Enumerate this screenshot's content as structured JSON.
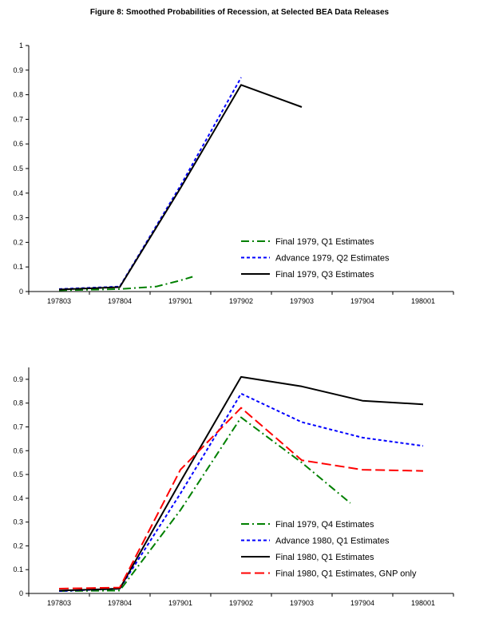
{
  "figure_title": "Figure 8: Smoothed Probabilities of Recession, at Selected BEA Data Releases",
  "colors": {
    "axis": "#000000",
    "green_series": "#008000",
    "blue_series": "#0000ff",
    "black_series": "#000000",
    "red_series": "#ff0000",
    "background": "#ffffff"
  },
  "chart_data": [
    {
      "type": "line",
      "title": "",
      "xlabel": "",
      "ylabel": "",
      "grid": false,
      "legend_position": "inside lower right",
      "x_tick_labels": [
        "197803",
        "197804",
        "197901",
        "197902",
        "197903",
        "197904",
        "198001"
      ],
      "y_tick_values": [
        0,
        0.1,
        0.2,
        0.3,
        0.4,
        0.5,
        0.6,
        0.7,
        0.8,
        0.9,
        1
      ],
      "y_tick_labels": [
        "0",
        "0.1",
        "0.2",
        "0.3",
        "0.4",
        "0.5",
        "0.6",
        "0.7",
        "0.8",
        "0.9",
        "1"
      ],
      "ylim": [
        0,
        1
      ],
      "series": [
        {
          "name": "Final 1979, Q1 Estimates",
          "color": "#008000",
          "dash": "dash-dot",
          "points": [
            [
              0,
              0.005
            ],
            [
              1,
              0.01
            ],
            [
              1.6,
              0.02
            ],
            [
              2,
              0.045
            ],
            [
              2.2,
              0.06
            ]
          ]
        },
        {
          "name": "Advance 1979, Q2 Estimates",
          "color": "#0000ff",
          "dash": "dash",
          "points": [
            [
              0,
              0.01
            ],
            [
              1,
              0.02
            ],
            [
              2,
              0.43
            ],
            [
              3,
              0.87
            ]
          ]
        },
        {
          "name": "Final 1979, Q3 Estimates",
          "color": "#000000",
          "dash": "solid",
          "points": [
            [
              0,
              0.008
            ],
            [
              1,
              0.018
            ],
            [
              2,
              0.42
            ],
            [
              3,
              0.84
            ],
            [
              4,
              0.75
            ]
          ]
        }
      ]
    },
    {
      "type": "line",
      "title": "",
      "xlabel": "",
      "ylabel": "",
      "grid": false,
      "legend_position": "inside lower right",
      "x_tick_labels": [
        "197803",
        "197804",
        "197901",
        "197902",
        "197903",
        "197904",
        "198001"
      ],
      "y_tick_values": [
        0,
        0.1,
        0.2,
        0.3,
        0.4,
        0.5,
        0.6,
        0.7,
        0.8,
        0.9
      ],
      "y_tick_labels": [
        "0",
        "0.1",
        "0.2",
        "0.3",
        "0.4",
        "0.5",
        "0.6",
        "0.7",
        "0.8",
        "0.9"
      ],
      "ylim": [
        0,
        0.95
      ],
      "series": [
        {
          "name": "Final 1979, Q4 Estimates",
          "color": "#008000",
          "dash": "dash-dot",
          "points": [
            [
              0,
              0.01
            ],
            [
              1,
              0.012
            ],
            [
              2,
              0.35
            ],
            [
              3,
              0.74
            ],
            [
              4,
              0.55
            ],
            [
              4.8,
              0.38
            ]
          ]
        },
        {
          "name": "Advance 1980, Q1 Estimates",
          "color": "#0000ff",
          "dash": "dash",
          "points": [
            [
              0,
              0.01
            ],
            [
              1,
              0.02
            ],
            [
              2,
              0.42
            ],
            [
              3,
              0.84
            ],
            [
              4,
              0.72
            ],
            [
              5,
              0.655
            ],
            [
              6,
              0.62
            ]
          ]
        },
        {
          "name": "Final 1980, Q1 Estimates",
          "color": "#000000",
          "dash": "solid",
          "points": [
            [
              0,
              0.012
            ],
            [
              1,
              0.02
            ],
            [
              2,
              0.47
            ],
            [
              3,
              0.91
            ],
            [
              4,
              0.87
            ],
            [
              5,
              0.81
            ],
            [
              6,
              0.795
            ]
          ]
        },
        {
          "name": "Final 1980, Q1 Estimates, GNP only",
          "color": "#ff0000",
          "dash": "long-dash",
          "points": [
            [
              0,
              0.02
            ],
            [
              1,
              0.025
            ],
            [
              2,
              0.52
            ],
            [
              3,
              0.78
            ],
            [
              4,
              0.56
            ],
            [
              5,
              0.52
            ],
            [
              6,
              0.515
            ]
          ]
        }
      ]
    }
  ]
}
